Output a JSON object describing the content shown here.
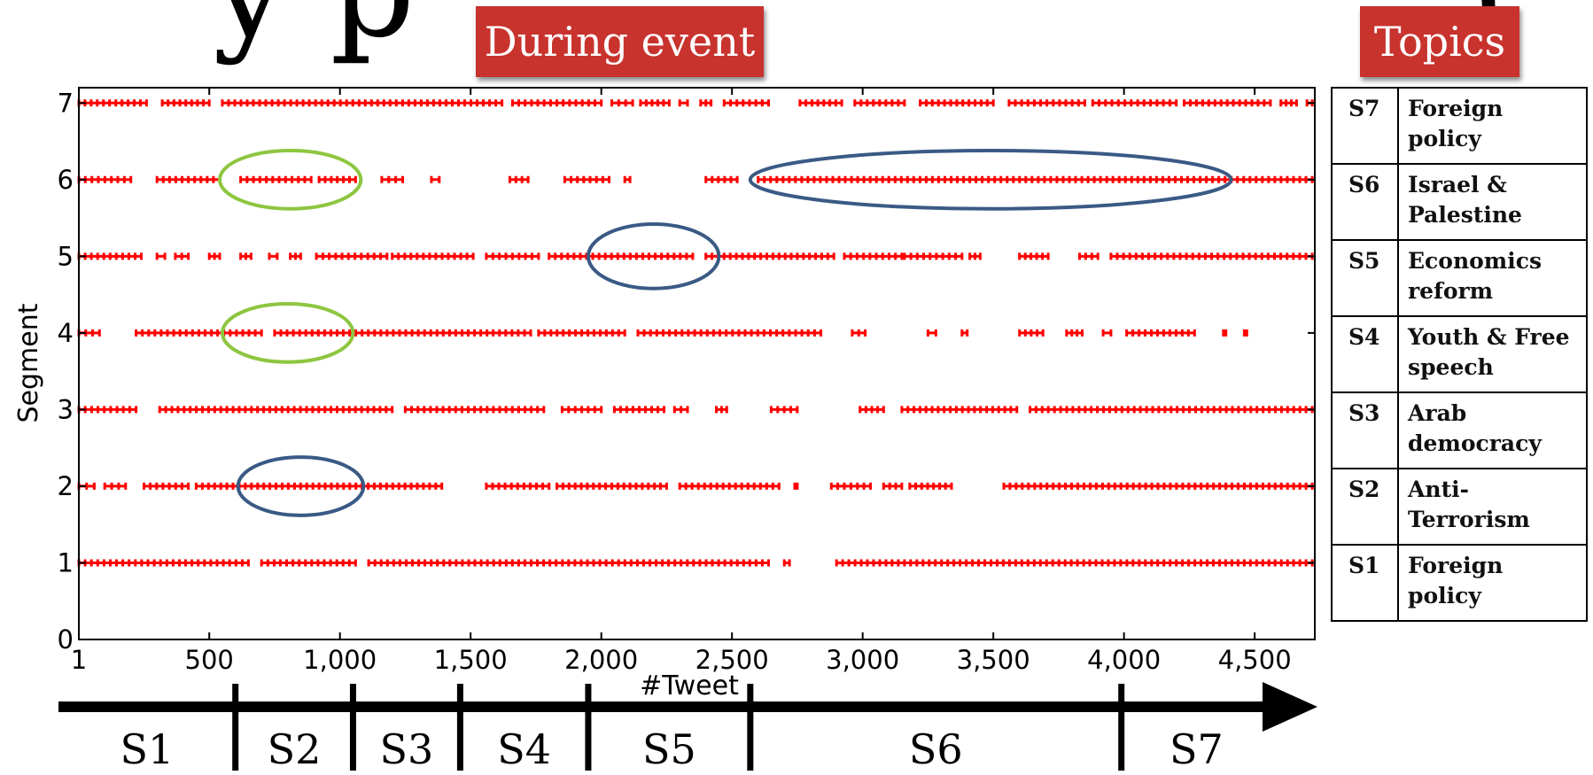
{
  "header": {
    "title_fragment": "y p                         (       p       )"
  },
  "callouts": {
    "during_event": "During event",
    "topics": "Topics"
  },
  "topics_table": [
    {
      "segment": "S7",
      "topic": "Foreign policy"
    },
    {
      "segment": "S6",
      "topic": "Israel & Palestine"
    },
    {
      "segment": "S5",
      "topic": "Economics reform"
    },
    {
      "segment": "S4",
      "topic": "Youth & Free speech"
    },
    {
      "segment": "S3",
      "topic": "Arab democracy"
    },
    {
      "segment": "S2",
      "topic": "Anti-Terrorism"
    },
    {
      "segment": "S1",
      "topic": "Foreign policy"
    }
  ],
  "timeline": {
    "segments": [
      {
        "label": "S1",
        "start": 1,
        "end": 600
      },
      {
        "label": "S2",
        "start": 600,
        "end": 1050
      },
      {
        "label": "S3",
        "start": 1050,
        "end": 1460
      },
      {
        "label": "S4",
        "start": 1460,
        "end": 1950
      },
      {
        "label": "S5",
        "start": 1950,
        "end": 2570
      },
      {
        "label": "S6",
        "start": 2570,
        "end": 3990
      },
      {
        "label": "S7",
        "start": 3990,
        "end": 4730
      }
    ]
  },
  "colors": {
    "marker": "#ff0000",
    "callout": "#c8332e",
    "ellipse_blue": "#3a5a85",
    "ellipse_green": "#8dc63f"
  },
  "chart_data": {
    "type": "scatter",
    "title": "",
    "xlabel": "#Tweet",
    "ylabel": "Segment",
    "xlim": [
      1,
      4730
    ],
    "ylim": [
      0,
      7.2
    ],
    "x_ticks": [
      1,
      500,
      1000,
      1500,
      2000,
      2500,
      3000,
      3500,
      4000,
      4500
    ],
    "x_tick_labels": [
      "1",
      "500",
      "1,000",
      "1,500",
      "2,000",
      "2,500",
      "3,000",
      "3,500",
      "4,000",
      "4,500"
    ],
    "y_ticks": [
      0,
      1,
      2,
      3,
      4,
      5,
      6,
      7
    ],
    "y_tick_labels": [
      "0",
      "1",
      "2",
      "3",
      "4",
      "5",
      "6",
      "7"
    ],
    "marker": "+",
    "grid": false,
    "series": [
      {
        "segment": 1,
        "ranges": [
          [
            1,
            650
          ],
          [
            700,
            1060
          ],
          [
            1110,
            2640
          ],
          [
            2700,
            2720
          ],
          [
            2900,
            4720
          ]
        ]
      },
      {
        "segment": 2,
        "ranges": [
          [
            1,
            60
          ],
          [
            100,
            180
          ],
          [
            250,
            420
          ],
          [
            450,
            1390
          ],
          [
            1560,
            1800
          ],
          [
            1830,
            2250
          ],
          [
            2300,
            2680
          ],
          [
            2740,
            2750
          ],
          [
            2880,
            3030
          ],
          [
            3080,
            3150
          ],
          [
            3180,
            3340
          ],
          [
            3540,
            4720
          ]
        ]
      },
      {
        "segment": 3,
        "ranges": [
          [
            1,
            220
          ],
          [
            310,
            1200
          ],
          [
            1250,
            1780
          ],
          [
            1850,
            2000
          ],
          [
            2050,
            2240
          ],
          [
            2280,
            2330
          ],
          [
            2440,
            2480
          ],
          [
            2650,
            2750
          ],
          [
            2990,
            3080
          ],
          [
            3150,
            3590
          ],
          [
            3640,
            4720
          ]
        ]
      },
      {
        "segment": 4,
        "ranges": [
          [
            1,
            80
          ],
          [
            220,
            700
          ],
          [
            750,
            1730
          ],
          [
            1760,
            2090
          ],
          [
            2140,
            2840
          ],
          [
            2960,
            3010
          ],
          [
            3250,
            3280
          ],
          [
            3380,
            3400
          ],
          [
            3600,
            3690
          ],
          [
            3780,
            3840
          ],
          [
            3920,
            3950
          ],
          [
            4010,
            4270
          ],
          [
            4380,
            4390
          ],
          [
            4460,
            4470
          ]
        ]
      },
      {
        "segment": 5,
        "ranges": [
          [
            1,
            240
          ],
          [
            300,
            330
          ],
          [
            370,
            420
          ],
          [
            500,
            540
          ],
          [
            620,
            660
          ],
          [
            730,
            760
          ],
          [
            810,
            850
          ],
          [
            910,
            1180
          ],
          [
            1200,
            1510
          ],
          [
            1560,
            1760
          ],
          [
            1800,
            2350
          ],
          [
            2400,
            2890
          ],
          [
            2930,
            3150
          ],
          [
            3160,
            3380
          ],
          [
            3410,
            3450
          ],
          [
            3600,
            3710
          ],
          [
            3830,
            3900
          ],
          [
            3950,
            4720
          ]
        ]
      },
      {
        "segment": 6,
        "ranges": [
          [
            1,
            200
          ],
          [
            300,
            540
          ],
          [
            620,
            890
          ],
          [
            920,
            1060
          ],
          [
            1160,
            1240
          ],
          [
            1350,
            1380
          ],
          [
            1650,
            1720
          ],
          [
            1860,
            2030
          ],
          [
            2090,
            2110
          ],
          [
            2400,
            2520
          ],
          [
            2600,
            4720
          ]
        ]
      },
      {
        "segment": 7,
        "ranges": [
          [
            1,
            260
          ],
          [
            320,
            500
          ],
          [
            550,
            1620
          ],
          [
            1660,
            2000
          ],
          [
            2040,
            2120
          ],
          [
            2150,
            2260
          ],
          [
            2300,
            2330
          ],
          [
            2380,
            2420
          ],
          [
            2470,
            2640
          ],
          [
            2760,
            2920
          ],
          [
            2970,
            3160
          ],
          [
            3220,
            3500
          ],
          [
            3560,
            3850
          ],
          [
            3880,
            4200
          ],
          [
            4230,
            4560
          ],
          [
            4600,
            4660
          ],
          [
            4700,
            4720
          ]
        ]
      }
    ],
    "annotations": [
      {
        "shape": "ellipse",
        "color": "green",
        "cx": 810,
        "cy": 6,
        "rx": 270,
        "ry": 0.38
      },
      {
        "shape": "ellipse",
        "color": "blue",
        "cx": 3490,
        "cy": 6,
        "rx": 920,
        "ry": 0.38
      },
      {
        "shape": "ellipse",
        "color": "blue",
        "cx": 2200,
        "cy": 5,
        "rx": 250,
        "ry": 0.42
      },
      {
        "shape": "ellipse",
        "color": "green",
        "cx": 800,
        "cy": 4,
        "rx": 250,
        "ry": 0.38
      },
      {
        "shape": "ellipse",
        "color": "blue",
        "cx": 850,
        "cy": 2,
        "rx": 240,
        "ry": 0.38
      }
    ]
  }
}
